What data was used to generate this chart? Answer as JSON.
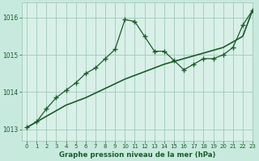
{
  "title": "Graphe pression niveau de la mer (hPa)",
  "bg_color": "#c8eade",
  "plot_bg_color": "#d8f0e8",
  "line_color": "#1a5c2a",
  "grid_color": "#a0c8b8",
  "xlim": [
    -0.5,
    23
  ],
  "ylim": [
    1012.7,
    1016.4
  ],
  "yticks": [
    1013,
    1014,
    1015,
    1016
  ],
  "xticks": [
    0,
    1,
    2,
    3,
    4,
    5,
    6,
    7,
    8,
    9,
    10,
    11,
    12,
    13,
    14,
    15,
    16,
    17,
    18,
    19,
    20,
    21,
    22,
    23
  ],
  "jagged_x": [
    0,
    1,
    2,
    3,
    4,
    5,
    6,
    7,
    8,
    9,
    10,
    11,
    12,
    13,
    14,
    15,
    16,
    17,
    18,
    19,
    20,
    21,
    22,
    23
  ],
  "jagged_y": [
    1013.05,
    1013.2,
    1013.55,
    1013.85,
    1014.05,
    1014.25,
    1014.5,
    1014.65,
    1014.9,
    1015.15,
    1015.95,
    1015.9,
    1015.5,
    1015.1,
    1015.1,
    1014.85,
    1014.6,
    1014.75,
    1014.9,
    1014.9,
    1015.0,
    1015.2,
    1015.8,
    1016.2
  ],
  "trend_x": [
    0,
    2,
    4,
    6,
    8,
    10,
    12,
    14,
    16,
    18,
    20,
    22,
    23
  ],
  "trend_y": [
    1013.05,
    1013.35,
    1013.65,
    1013.85,
    1014.1,
    1014.35,
    1014.55,
    1014.75,
    1014.9,
    1015.05,
    1015.2,
    1015.5,
    1016.2
  ]
}
